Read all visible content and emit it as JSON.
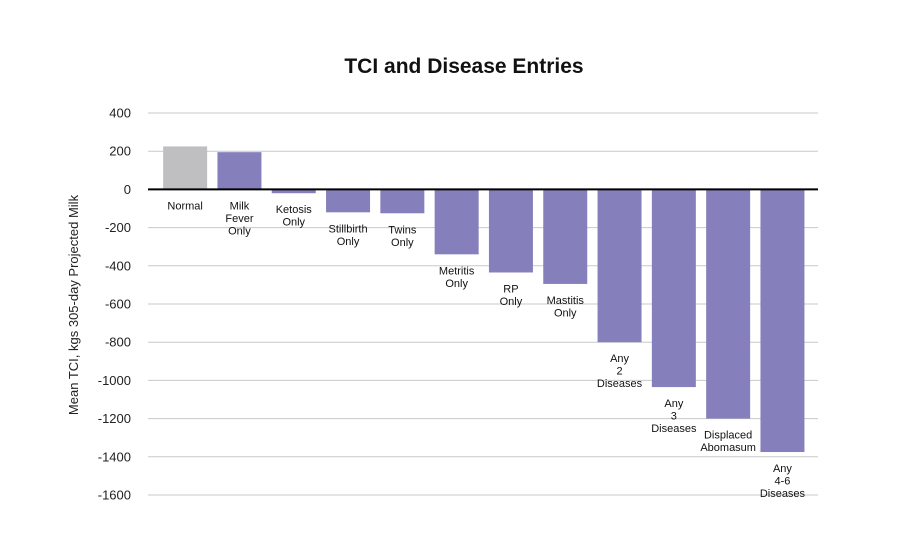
{
  "chart_data": {
    "type": "bar",
    "title": "TCI and Disease Entries",
    "xlabel": "",
    "ylabel": "Mean TCI, kgs 305-day Projected Milk",
    "ylim": [
      -1600,
      400
    ],
    "yticks": [
      400,
      200,
      0,
      -200,
      -400,
      -600,
      -800,
      -1000,
      -1200,
      -1400,
      -1600
    ],
    "grid": true,
    "categories": [
      "Normal",
      "Milk Fever Only",
      "Ketosis Only",
      "Stillbirth Only",
      "Twins Only",
      "Metritis Only",
      "RP Only",
      "Mastitis Only",
      "Any 2 Diseases",
      "Any 3 Diseases",
      "Displaced Abomasum",
      "Any 4-6 Diseases"
    ],
    "category_lines": [
      [
        "Normal"
      ],
      [
        "Milk",
        "Fever",
        "Only"
      ],
      [
        "Ketosis",
        "Only"
      ],
      [
        "Stillbirth",
        "Only"
      ],
      [
        "Twins",
        "Only"
      ],
      [
        "Metritis",
        "Only"
      ],
      [
        "RP",
        "Only"
      ],
      [
        "Mastitis",
        "Only"
      ],
      [
        "Any",
        "2",
        "Diseases"
      ],
      [
        "Any",
        "3",
        "Diseases"
      ],
      [
        "Displaced",
        "Abomasum"
      ],
      [
        "Any",
        "4-6",
        "Diseases"
      ]
    ],
    "values": [
      225,
      195,
      -20,
      -120,
      -125,
      -340,
      -435,
      -495,
      -800,
      -1035,
      -1200,
      -1375
    ],
    "colors": {
      "Normal": "#bfbfc1",
      "default": "#8580bb"
    }
  }
}
